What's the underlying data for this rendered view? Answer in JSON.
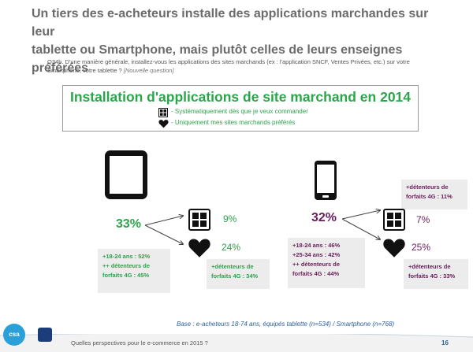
{
  "headline": {
    "line1": "Un tiers des e-acheteurs installe des applications marchandes sur leur",
    "line2": "tablette ou Smartphone, mais plutôt celles de leurs enseignes préférées"
  },
  "question": {
    "text": "Q34b. D'une manière générale, installez-vous les applications des sites marchands (ex : l'application SNCF, Ventes Privées, etc.) sur votre Smartphone, votre tablette ?",
    "note": "[Nouvelle question]"
  },
  "panel": {
    "title": "Installation d'applications de site marchand en 2014",
    "legend": [
      {
        "icon": "grid-app-icon",
        "label": "- Systématiquement dès que je veux commander"
      },
      {
        "icon": "heart-icon",
        "label": "- Uniquement mes sites marchands préférés"
      }
    ]
  },
  "tablet": {
    "device_icon": "tablet-icon",
    "total": "33%",
    "systematic": "9%",
    "favorite": "24%",
    "profile_note": "+18-24 ans : 52%\n++ détenteurs de forfaits 4G : 45%",
    "favorite_note": "+détenteurs de forfaits 4G : 34%",
    "color": "#2aa54a"
  },
  "smartphone": {
    "device_icon": "smartphone-icon",
    "total": "32%",
    "systematic": "7%",
    "favorite": "25%",
    "systematic_note": "+détenteurs de forfaits 4G : 11%",
    "profile_note": "+18-24 ans : 46%\n+25-34 ans : 42%\n++ détenteurs de forfaits 4G : 44%",
    "favorite_note": "+détenteurs de forfaits 4G : 33%",
    "color": "#6b1d5c"
  },
  "footer": {
    "base": "Base : e-acheteurs 18-74 ans, équipés tablette (n=534) / Smartphone (n=768)",
    "text": "Quelles perspectives pour le e-commerce en 2015 ?",
    "page": "16",
    "logo": "csa"
  }
}
